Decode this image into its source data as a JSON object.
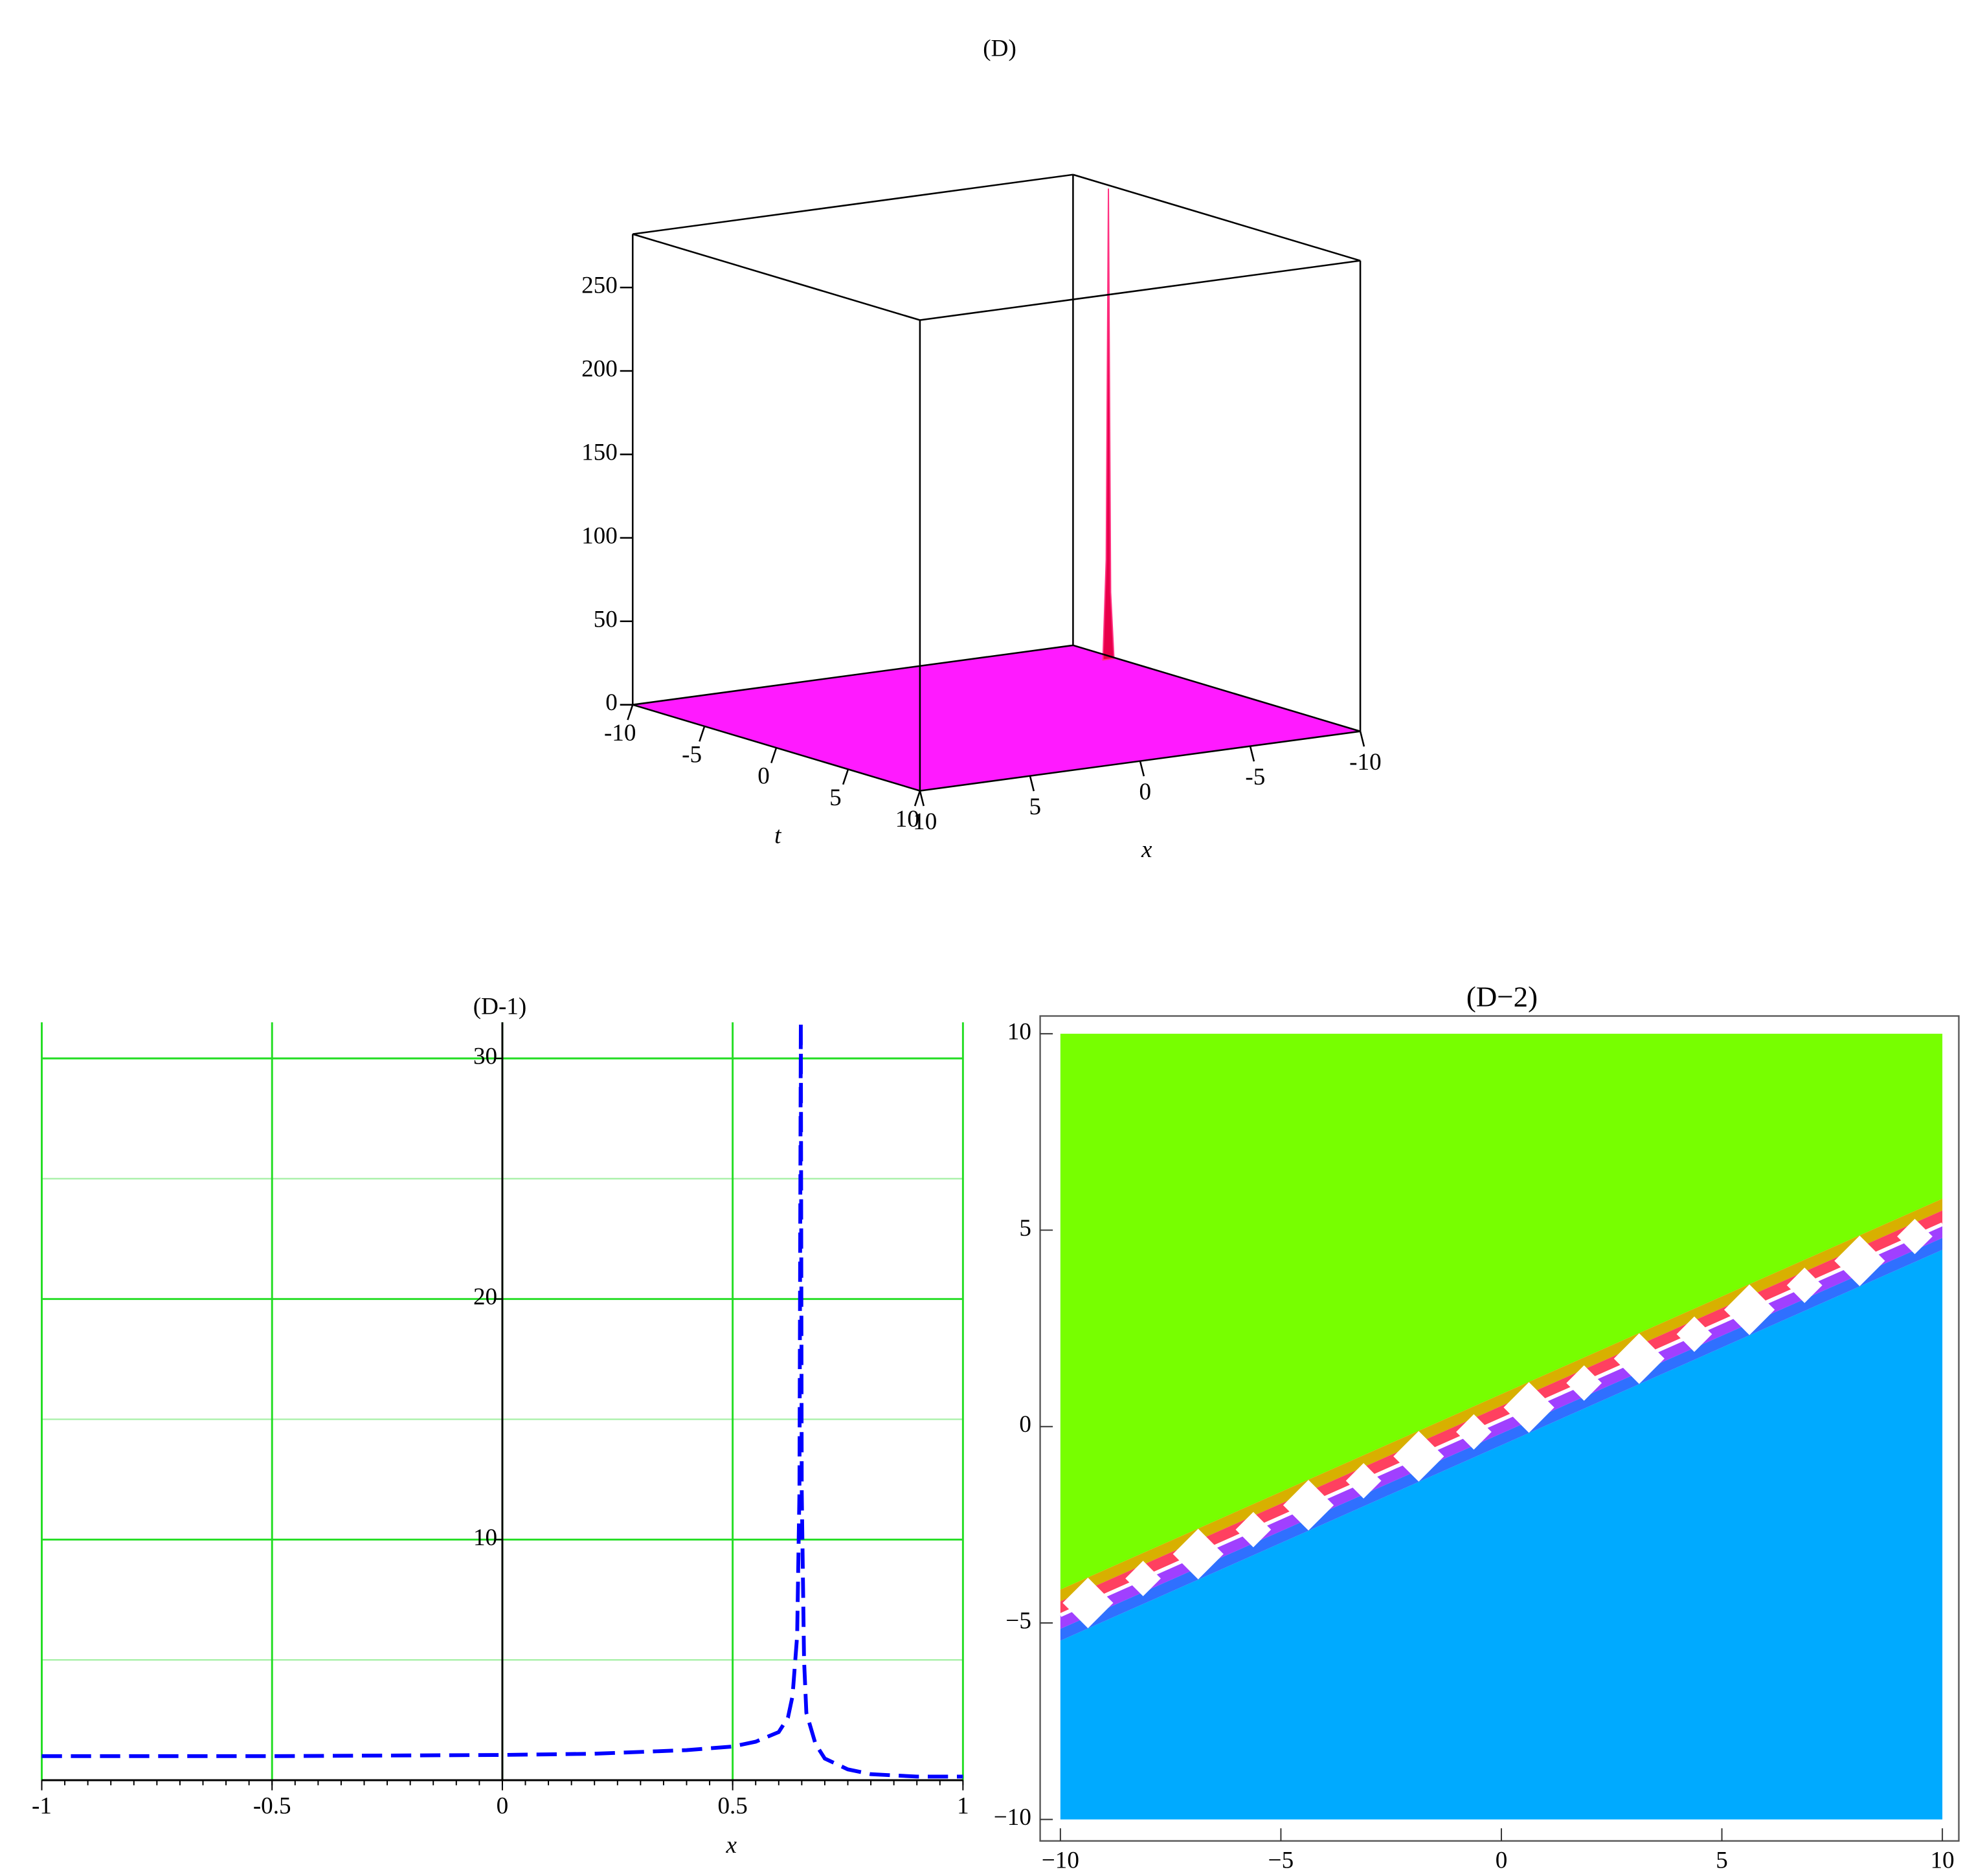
{
  "chart_data": [
    {
      "type": "surface3d",
      "title": "(D)",
      "xlabel": "x",
      "tlabel": "t",
      "x": [
        -9.9,
        -9.75,
        -9.65,
        -9.55,
        -9.4
      ],
      "t": [
        -7,
        -7,
        -7,
        -7,
        -7
      ],
      "z": [
        0,
        40,
        282,
        60,
        0
      ],
      "xlim": [
        10,
        -10
      ],
      "tlim": [
        -10,
        10
      ],
      "zlim": [
        0,
        282
      ],
      "xticks": [
        10,
        5,
        0,
        -5,
        -10
      ],
      "tticks": [
        -10,
        -5,
        0,
        5,
        10
      ],
      "zticks": [
        0,
        50,
        100,
        150,
        200,
        250
      ],
      "floor_color": "#ff1aff",
      "color": "#e8004a"
    },
    {
      "type": "line",
      "title": "(D-1)",
      "xlabel": "x",
      "x": [
        -1,
        -0.5,
        0,
        0.2,
        0.4,
        0.5,
        0.55,
        0.6,
        0.62,
        0.63,
        0.64,
        0.645,
        0.648,
        0.65,
        0.655,
        0.66,
        0.68,
        0.7,
        0.75,
        0.8,
        0.9,
        1
      ],
      "series": [
        {
          "color": "#0000ff",
          "values": [
            1.0,
            1.0,
            1.05,
            1.1,
            1.25,
            1.4,
            1.6,
            2.0,
            2.6,
            3.5,
            6,
            12,
            31.5,
            12,
            5,
            2.8,
            1.5,
            0.9,
            0.45,
            0.25,
            0.15,
            0.15
          ]
        }
      ],
      "xlim": [
        -1,
        1
      ],
      "ylim": [
        0,
        31.5
      ],
      "xticks": [
        -1,
        -0.5,
        0,
        0.5,
        1
      ],
      "yticks": [
        10,
        20,
        30
      ],
      "minor_yticks": [
        5,
        15,
        25
      ],
      "grid": true,
      "grid_color": "#22dd22"
    },
    {
      "type": "density",
      "title": "(D−2)",
      "boundary": {
        "x": [
          -10,
          10
        ],
        "y": [
          -4.8,
          5.15
        ]
      },
      "upper_color": "#77ff00",
      "lower_color": "#00aaff",
      "xlim": [
        -10,
        10
      ],
      "ylim": [
        -10,
        10
      ],
      "xticks": [
        {
          "value": -10,
          "label": "−10"
        },
        {
          "value": -5,
          "label": "−5"
        },
        0,
        5,
        10
      ],
      "yticks": [
        {
          "value": -10,
          "label": "−10"
        },
        {
          "value": -5,
          "label": "−5"
        },
        0,
        5,
        10
      ]
    }
  ]
}
